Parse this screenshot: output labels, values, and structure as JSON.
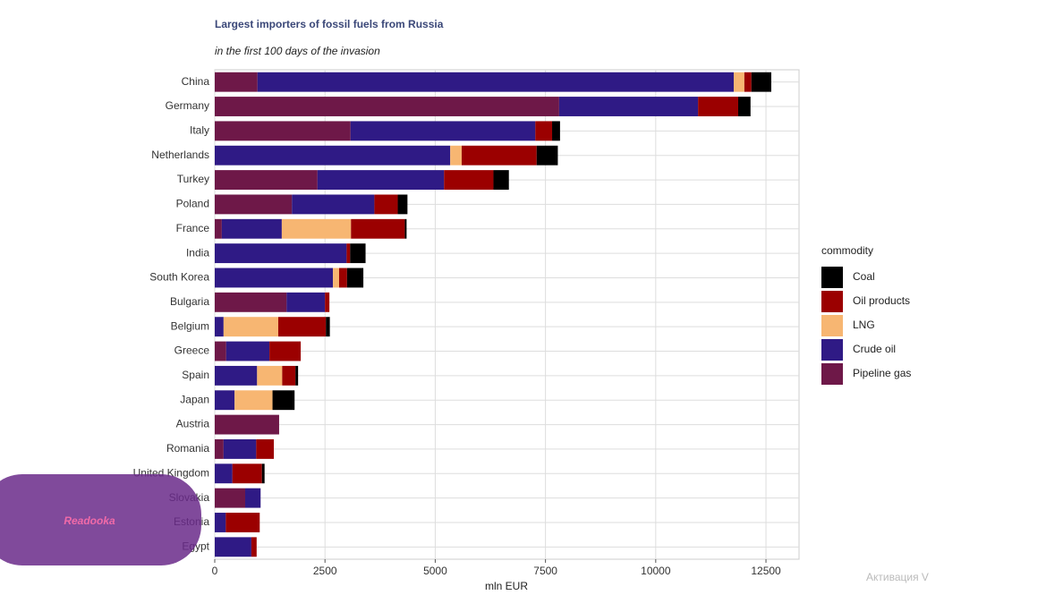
{
  "chart_data": {
    "type": "stacked-bar-horizontal",
    "title": "Largest importers of fossil fuels from Russia",
    "subtitle": "in the first 100 days of the invasion",
    "x_label": "mln EUR",
    "legend_title": "commodity",
    "categories": [
      "China",
      "Germany",
      "Italy",
      "Netherlands",
      "Turkey",
      "Poland",
      "France",
      "India",
      "South Korea",
      "Bulgaria",
      "Belgium",
      "Greece",
      "Spain",
      "Japan",
      "Austria",
      "Romania",
      "United Kingdom",
      "Slovakia",
      "Estonia",
      "Egypt"
    ],
    "series": [
      {
        "name": "Coal",
        "color": "#000000",
        "values": [
          450,
          280,
          180,
          480,
          350,
          220,
          40,
          350,
          370,
          0,
          90,
          0,
          60,
          500,
          0,
          0,
          60,
          0,
          0,
          0
        ]
      },
      {
        "name": "Oil products",
        "color": "#9b0000",
        "values": [
          160,
          910,
          380,
          1700,
          1120,
          530,
          1220,
          80,
          180,
          100,
          1080,
          710,
          300,
          0,
          0,
          400,
          670,
          0,
          770,
          120
        ]
      },
      {
        "name": "LNG",
        "color": "#f7b672",
        "values": [
          240,
          0,
          0,
          260,
          0,
          0,
          1570,
          0,
          140,
          0,
          1240,
          0,
          570,
          860,
          0,
          0,
          0,
          0,
          0,
          0
        ]
      },
      {
        "name": "Crude oil",
        "color": "#2f1a85",
        "values": [
          10800,
          3150,
          4190,
          5340,
          2870,
          1870,
          1360,
          2990,
          2680,
          870,
          200,
          980,
          960,
          450,
          0,
          740,
          400,
          350,
          250,
          830
        ]
      },
      {
        "name": "Pipeline gas",
        "color": "#6e1848",
        "values": [
          970,
          7810,
          3080,
          0,
          2330,
          1750,
          160,
          0,
          0,
          1630,
          0,
          260,
          0,
          0,
          1460,
          200,
          0,
          690,
          0,
          0
        ]
      }
    ],
    "xlim": [
      0,
      13250
    ],
    "xticks": [
      0,
      2500,
      5000,
      7500,
      10000,
      12500
    ],
    "grid": true
  },
  "overlay": {
    "logo": "Readooka",
    "activation": "Активация V"
  }
}
